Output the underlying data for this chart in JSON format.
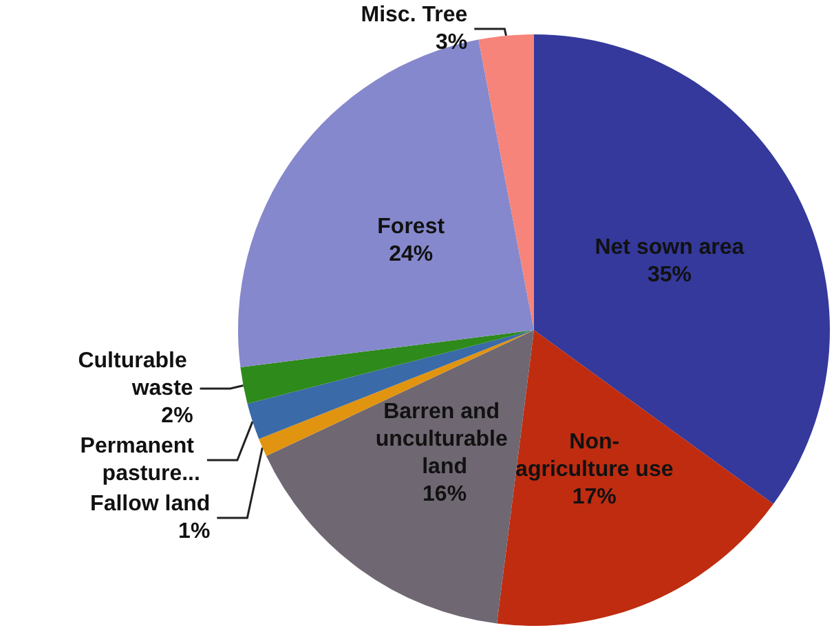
{
  "chart_data": {
    "type": "pie",
    "categories": [
      "Net sown area",
      "Non-agriculture use",
      "Barren and unculturable land",
      "Fallow land",
      "Permanent pasture...",
      "Culturable waste",
      "Forest",
      "Misc. Tree"
    ],
    "values": [
      35,
      17,
      16,
      1,
      2,
      2,
      24,
      3
    ],
    "value_labels": [
      "35%",
      "17%",
      "16%",
      "1%",
      null,
      "2%",
      "24%",
      "3%"
    ],
    "colors": [
      "#34399b",
      "#bf2c10",
      "#6f6772",
      "#e09410",
      "#3a6aa8",
      "#2e8a1a",
      "#8588cc",
      "#f6847a"
    ],
    "legend": false
  }
}
